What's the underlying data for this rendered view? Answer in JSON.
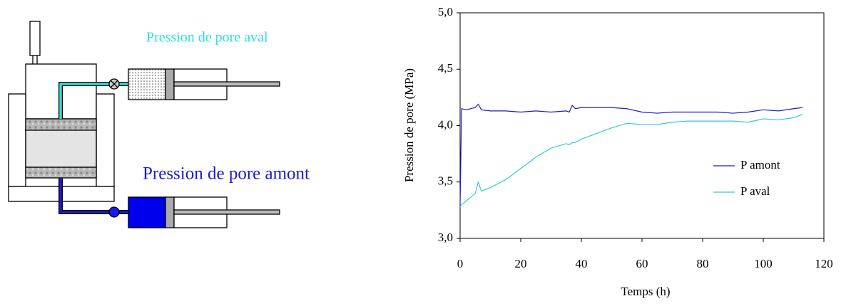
{
  "diagram": {
    "labels": [
      "Pression de pore aval",
      "Pression de pore amont"
    ]
  },
  "chart_data": {
    "type": "line",
    "xlabel": "Temps (h)",
    "ylabel": "Pression de pore (MPa)",
    "x": [
      0,
      0.5,
      2,
      5,
      6,
      7,
      10,
      15,
      20,
      25,
      30,
      35,
      36,
      37,
      38,
      40,
      45,
      50,
      55,
      60,
      65,
      70,
      75,
      80,
      85,
      90,
      95,
      100,
      105,
      110,
      113
    ],
    "series": [
      {
        "name": "P amont",
        "color": "#1a1acc",
        "values": [
          3.3,
          4.15,
          4.14,
          4.16,
          4.19,
          4.14,
          4.13,
          4.13,
          4.12,
          4.13,
          4.12,
          4.13,
          4.12,
          4.18,
          4.15,
          4.16,
          4.16,
          4.16,
          4.15,
          4.12,
          4.11,
          4.12,
          4.12,
          4.12,
          4.12,
          4.11,
          4.12,
          4.14,
          4.13,
          4.15,
          4.16
        ]
      },
      {
        "name": "P aval",
        "color": "#33cccc",
        "values": [
          3.28,
          3.3,
          3.33,
          3.4,
          3.5,
          3.42,
          3.45,
          3.52,
          3.62,
          3.72,
          3.8,
          3.84,
          3.83,
          3.85,
          3.85,
          3.88,
          3.93,
          3.98,
          4.02,
          4.01,
          4.01,
          4.03,
          4.04,
          4.04,
          4.04,
          4.04,
          4.03,
          4.06,
          4.05,
          4.07,
          4.1
        ]
      }
    ],
    "xlim": [
      0,
      120
    ],
    "xticks": [
      0,
      20,
      40,
      60,
      80,
      100,
      120
    ],
    "ylim": [
      3,
      5
    ],
    "yticks": [
      {
        "value": 3,
        "label": "3,0"
      },
      {
        "value": 3.5,
        "label": "3,5"
      },
      {
        "value": 4,
        "label": "4,0"
      },
      {
        "value": 4.5,
        "label": "4,5"
      },
      {
        "value": 5,
        "label": "5,0"
      }
    ],
    "grid": false,
    "legend": "right"
  }
}
